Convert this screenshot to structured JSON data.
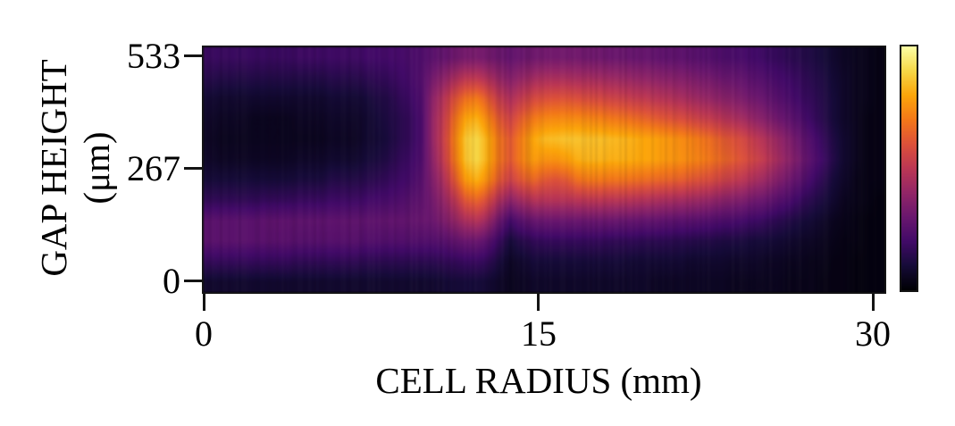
{
  "figure": {
    "title": "",
    "y_axis": {
      "label_line1": "GAP HEIGHT",
      "label_line2": "(μm)",
      "ticks": [
        "533",
        "267",
        "0"
      ]
    },
    "x_axis": {
      "label": "CELL RADIUS (mm)",
      "ticks": [
        "0",
        "15",
        "30"
      ]
    }
  },
  "colors": {
    "background": "#ffffff",
    "text": "#000000",
    "frame": "#141414"
  },
  "chart_data": {
    "type": "heatmap",
    "title": "",
    "xlabel": "CELL RADIUS (mm)",
    "ylabel": "GAP HEIGHT (μm)",
    "x_tick_values": [
      0,
      15,
      30
    ],
    "y_tick_values": [
      0,
      267,
      533
    ],
    "x_range_mm": [
      0,
      30.5
    ],
    "y_range_um": [
      -24,
      557
    ],
    "grid_lines": false,
    "legend": "none",
    "colormap": "inferno",
    "colormap_stops": [
      "#000004",
      "#160b39",
      "#420a68",
      "#6a176e",
      "#932667",
      "#bc3754",
      "#dd513a",
      "#f37819",
      "#fca50a",
      "#f6d746",
      "#fcffa4"
    ],
    "colorbar": {
      "shown": true,
      "position": "right",
      "tick_labels": []
    },
    "values_scale": "relative intensity 0-1 (colorbar is unlabeled)",
    "grid": {
      "n_rows": 12,
      "n_cols": 61,
      "x_start_mm": 0.25,
      "x_step_mm": 0.5,
      "row_order": "top_to_bottom (533um row first, 0um row last)",
      "values": [
        [
          0.18,
          0.18,
          0.18,
          0.18,
          0.18,
          0.18,
          0.18,
          0.18,
          0.19,
          0.19,
          0.19,
          0.19,
          0.19,
          0.19,
          0.2,
          0.2,
          0.21,
          0.21,
          0.22,
          0.23,
          0.26,
          0.28,
          0.31,
          0.33,
          0.33,
          0.32,
          0.3,
          0.28,
          0.3,
          0.31,
          0.32,
          0.32,
          0.32,
          0.32,
          0.31,
          0.31,
          0.3,
          0.3,
          0.29,
          0.29,
          0.28,
          0.27,
          0.27,
          0.26,
          0.25,
          0.24,
          0.23,
          0.22,
          0.21,
          0.2,
          0.18,
          0.17,
          0.15,
          0.14,
          0.12,
          0.1,
          0.08,
          0.06,
          0.05,
          0.04,
          0.03
        ],
        [
          0.14,
          0.13,
          0.13,
          0.13,
          0.13,
          0.13,
          0.13,
          0.13,
          0.13,
          0.13,
          0.13,
          0.14,
          0.14,
          0.14,
          0.15,
          0.16,
          0.17,
          0.19,
          0.21,
          0.24,
          0.32,
          0.38,
          0.45,
          0.5,
          0.5,
          0.46,
          0.4,
          0.36,
          0.4,
          0.43,
          0.45,
          0.45,
          0.45,
          0.44,
          0.44,
          0.43,
          0.42,
          0.41,
          0.4,
          0.39,
          0.38,
          0.37,
          0.36,
          0.35,
          0.33,
          0.32,
          0.3,
          0.29,
          0.27,
          0.25,
          0.23,
          0.21,
          0.19,
          0.17,
          0.14,
          0.12,
          0.09,
          0.07,
          0.05,
          0.04,
          0.03
        ],
        [
          0.09,
          0.08,
          0.08,
          0.08,
          0.08,
          0.08,
          0.08,
          0.08,
          0.08,
          0.08,
          0.08,
          0.09,
          0.09,
          0.09,
          0.1,
          0.12,
          0.13,
          0.16,
          0.19,
          0.23,
          0.38,
          0.48,
          0.6,
          0.68,
          0.7,
          0.62,
          0.52,
          0.46,
          0.52,
          0.57,
          0.59,
          0.6,
          0.6,
          0.59,
          0.58,
          0.57,
          0.55,
          0.54,
          0.52,
          0.51,
          0.49,
          0.48,
          0.46,
          0.44,
          0.42,
          0.4,
          0.38,
          0.36,
          0.33,
          0.31,
          0.28,
          0.25,
          0.22,
          0.19,
          0.16,
          0.13,
          0.1,
          0.07,
          0.05,
          0.04,
          0.03
        ],
        [
          0.07,
          0.06,
          0.06,
          0.06,
          0.05,
          0.05,
          0.05,
          0.05,
          0.06,
          0.06,
          0.06,
          0.07,
          0.07,
          0.07,
          0.08,
          0.1,
          0.12,
          0.14,
          0.17,
          0.22,
          0.4,
          0.52,
          0.68,
          0.8,
          0.82,
          0.73,
          0.62,
          0.55,
          0.64,
          0.7,
          0.73,
          0.74,
          0.74,
          0.74,
          0.73,
          0.72,
          0.7,
          0.69,
          0.67,
          0.65,
          0.63,
          0.61,
          0.59,
          0.57,
          0.54,
          0.52,
          0.49,
          0.46,
          0.43,
          0.39,
          0.35,
          0.31,
          0.27,
          0.23,
          0.18,
          0.14,
          0.1,
          0.07,
          0.05,
          0.03,
          0.03
        ],
        [
          0.06,
          0.05,
          0.05,
          0.05,
          0.05,
          0.05,
          0.05,
          0.05,
          0.05,
          0.05,
          0.05,
          0.06,
          0.06,
          0.06,
          0.08,
          0.09,
          0.11,
          0.14,
          0.17,
          0.22,
          0.4,
          0.54,
          0.72,
          0.87,
          0.9,
          0.81,
          0.69,
          0.62,
          0.72,
          0.8,
          0.84,
          0.85,
          0.86,
          0.86,
          0.85,
          0.85,
          0.84,
          0.83,
          0.82,
          0.8,
          0.79,
          0.77,
          0.75,
          0.73,
          0.7,
          0.67,
          0.63,
          0.6,
          0.56,
          0.51,
          0.46,
          0.41,
          0.35,
          0.29,
          0.23,
          0.17,
          0.12,
          0.08,
          0.05,
          0.03,
          0.03
        ],
        [
          0.07,
          0.06,
          0.06,
          0.06,
          0.06,
          0.06,
          0.06,
          0.06,
          0.07,
          0.07,
          0.07,
          0.08,
          0.08,
          0.08,
          0.1,
          0.11,
          0.13,
          0.16,
          0.19,
          0.23,
          0.38,
          0.52,
          0.7,
          0.86,
          0.9,
          0.81,
          0.69,
          0.62,
          0.72,
          0.78,
          0.76,
          0.76,
          0.78,
          0.82,
          0.83,
          0.83,
          0.82,
          0.82,
          0.81,
          0.8,
          0.79,
          0.77,
          0.76,
          0.74,
          0.72,
          0.69,
          0.66,
          0.63,
          0.59,
          0.55,
          0.5,
          0.44,
          0.38,
          0.32,
          0.25,
          0.19,
          0.13,
          0.08,
          0.05,
          0.03,
          0.03
        ],
        [
          0.1,
          0.1,
          0.1,
          0.1,
          0.1,
          0.1,
          0.1,
          0.1,
          0.11,
          0.11,
          0.11,
          0.13,
          0.13,
          0.13,
          0.14,
          0.15,
          0.17,
          0.19,
          0.21,
          0.25,
          0.35,
          0.46,
          0.62,
          0.78,
          0.82,
          0.74,
          0.62,
          0.54,
          0.62,
          0.66,
          0.62,
          0.6,
          0.62,
          0.68,
          0.7,
          0.7,
          0.69,
          0.69,
          0.68,
          0.67,
          0.66,
          0.65,
          0.64,
          0.62,
          0.6,
          0.58,
          0.55,
          0.52,
          0.49,
          0.45,
          0.41,
          0.36,
          0.31,
          0.26,
          0.2,
          0.15,
          0.1,
          0.07,
          0.04,
          0.03,
          0.03
        ],
        [
          0.16,
          0.16,
          0.16,
          0.16,
          0.16,
          0.17,
          0.17,
          0.17,
          0.18,
          0.18,
          0.18,
          0.19,
          0.19,
          0.19,
          0.2,
          0.21,
          0.22,
          0.23,
          0.25,
          0.27,
          0.32,
          0.4,
          0.5,
          0.62,
          0.65,
          0.58,
          0.46,
          0.38,
          0.44,
          0.48,
          0.48,
          0.48,
          0.48,
          0.49,
          0.5,
          0.5,
          0.49,
          0.49,
          0.48,
          0.47,
          0.46,
          0.45,
          0.44,
          0.43,
          0.42,
          0.4,
          0.38,
          0.36,
          0.34,
          0.31,
          0.29,
          0.25,
          0.22,
          0.18,
          0.14,
          0.11,
          0.08,
          0.05,
          0.04,
          0.03,
          0.02
        ],
        [
          0.26,
          0.26,
          0.26,
          0.26,
          0.26,
          0.27,
          0.27,
          0.27,
          0.27,
          0.27,
          0.27,
          0.27,
          0.27,
          0.27,
          0.27,
          0.27,
          0.28,
          0.28,
          0.28,
          0.29,
          0.3,
          0.34,
          0.4,
          0.46,
          0.48,
          0.42,
          0.3,
          0.2,
          0.26,
          0.29,
          0.3,
          0.3,
          0.3,
          0.3,
          0.3,
          0.3,
          0.3,
          0.29,
          0.29,
          0.28,
          0.28,
          0.27,
          0.26,
          0.26,
          0.25,
          0.24,
          0.23,
          0.22,
          0.2,
          0.19,
          0.17,
          0.15,
          0.13,
          0.11,
          0.09,
          0.07,
          0.05,
          0.04,
          0.03,
          0.02,
          0.02
        ],
        [
          0.26,
          0.26,
          0.26,
          0.26,
          0.26,
          0.26,
          0.26,
          0.26,
          0.25,
          0.25,
          0.25,
          0.25,
          0.25,
          0.25,
          0.24,
          0.24,
          0.24,
          0.24,
          0.24,
          0.24,
          0.24,
          0.25,
          0.28,
          0.3,
          0.3,
          0.26,
          0.18,
          0.1,
          0.14,
          0.16,
          0.17,
          0.17,
          0.17,
          0.17,
          0.17,
          0.17,
          0.16,
          0.16,
          0.16,
          0.15,
          0.15,
          0.15,
          0.14,
          0.14,
          0.13,
          0.13,
          0.12,
          0.12,
          0.11,
          0.1,
          0.1,
          0.09,
          0.08,
          0.07,
          0.06,
          0.05,
          0.04,
          0.03,
          0.03,
          0.02,
          0.02
        ],
        [
          0.17,
          0.17,
          0.17,
          0.17,
          0.17,
          0.17,
          0.17,
          0.17,
          0.16,
          0.16,
          0.16,
          0.16,
          0.16,
          0.16,
          0.15,
          0.15,
          0.15,
          0.15,
          0.15,
          0.15,
          0.15,
          0.16,
          0.17,
          0.18,
          0.18,
          0.16,
          0.11,
          0.06,
          0.08,
          0.1,
          0.1,
          0.1,
          0.1,
          0.1,
          0.1,
          0.1,
          0.1,
          0.1,
          0.09,
          0.09,
          0.09,
          0.09,
          0.09,
          0.08,
          0.08,
          0.08,
          0.08,
          0.07,
          0.07,
          0.07,
          0.06,
          0.06,
          0.05,
          0.05,
          0.04,
          0.04,
          0.03,
          0.03,
          0.02,
          0.02,
          0.02
        ],
        [
          0.08,
          0.08,
          0.08,
          0.08,
          0.08,
          0.08,
          0.08,
          0.08,
          0.08,
          0.08,
          0.08,
          0.08,
          0.08,
          0.08,
          0.08,
          0.08,
          0.08,
          0.08,
          0.08,
          0.08,
          0.08,
          0.09,
          0.1,
          0.1,
          0.1,
          0.09,
          0.07,
          0.05,
          0.06,
          0.07,
          0.07,
          0.07,
          0.07,
          0.07,
          0.07,
          0.07,
          0.07,
          0.07,
          0.07,
          0.07,
          0.06,
          0.06,
          0.06,
          0.06,
          0.06,
          0.06,
          0.06,
          0.05,
          0.05,
          0.05,
          0.05,
          0.05,
          0.04,
          0.04,
          0.04,
          0.03,
          0.03,
          0.03,
          0.02,
          0.02,
          0.02
        ]
      ]
    }
  }
}
